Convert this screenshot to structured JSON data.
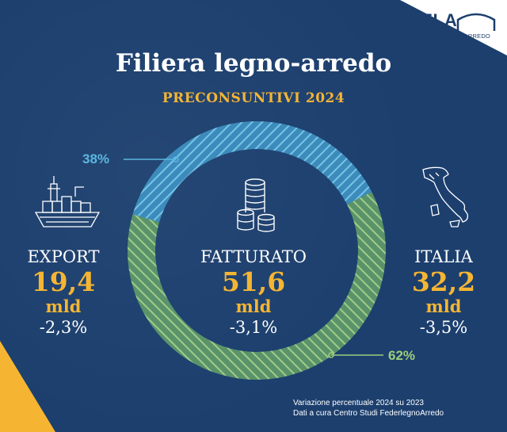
{
  "header": {
    "title": "Filiera legno-arredo",
    "subtitle": "PRECONSUNTIVI 2024",
    "logo_text": "FLA",
    "logo_subtext": "FEDERLEGNOARREDO"
  },
  "colors": {
    "background": "#1c3f6e",
    "accent_yellow": "#f5b533",
    "export_blue": "#5bb7e0",
    "italia_green": "#9ccd7a"
  },
  "icons": [
    "container-ship-icon",
    "coin-stack-icon",
    "italy-map-icon"
  ],
  "chart_data": {
    "type": "pie",
    "style": "donut",
    "total": {
      "label": "FATTURATO",
      "value": "51,6",
      "unit": "mld",
      "change": "-3,1%"
    },
    "slices": [
      {
        "label": "EXPORT",
        "value": "19,4",
        "unit": "mld",
        "change": "-2,3%",
        "percent": 38,
        "percent_label": "38%",
        "color": "#5bb7e0"
      },
      {
        "label": "ITALIA",
        "value": "32,2",
        "unit": "mld",
        "change": "-3,5%",
        "percent": 62,
        "percent_label": "62%",
        "color": "#9ccd7a"
      }
    ]
  },
  "footer": {
    "line1": "Variazione percentuale 2024 su 2023",
    "line2": "Dati a cura Centro Studi FederlegnoArredo"
  }
}
